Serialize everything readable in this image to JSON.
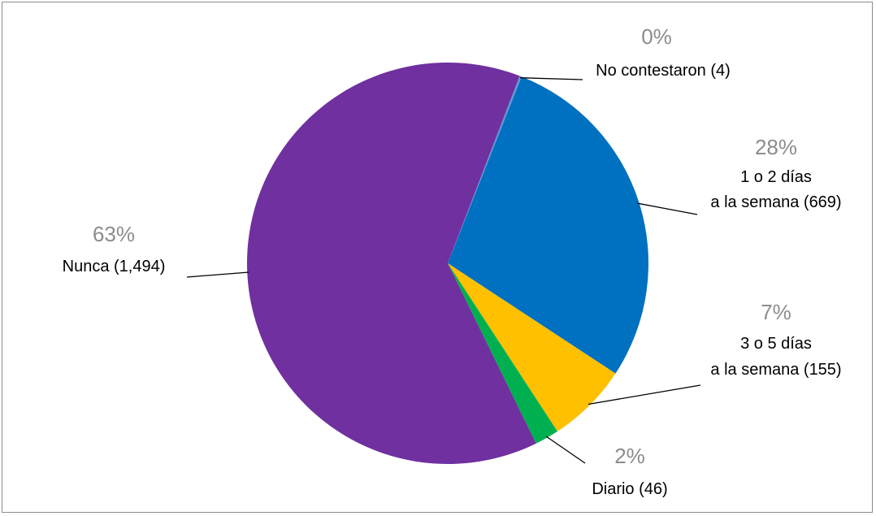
{
  "chart_data": {
    "type": "pie",
    "slices": [
      {
        "pct": "0%",
        "value": 4,
        "label_lines": [
          "No contestaron (4)"
        ],
        "color": "#5b9bd5"
      },
      {
        "pct": "28%",
        "value": 669,
        "label_lines": [
          "1 o 2 días",
          "a la semana (669)"
        ],
        "color": "#0070c0"
      },
      {
        "pct": "7%",
        "value": 155,
        "label_lines": [
          "3 o 5 días",
          "a la semana (155)"
        ],
        "color": "#ffc000"
      },
      {
        "pct": "2%",
        "value": 46,
        "label_lines": [
          "Diario (46)"
        ],
        "color": "#00b050"
      },
      {
        "pct": "63%",
        "value": 1494,
        "label_lines": [
          "Nunca (1,494)"
        ],
        "color": "#7030a0"
      }
    ]
  }
}
